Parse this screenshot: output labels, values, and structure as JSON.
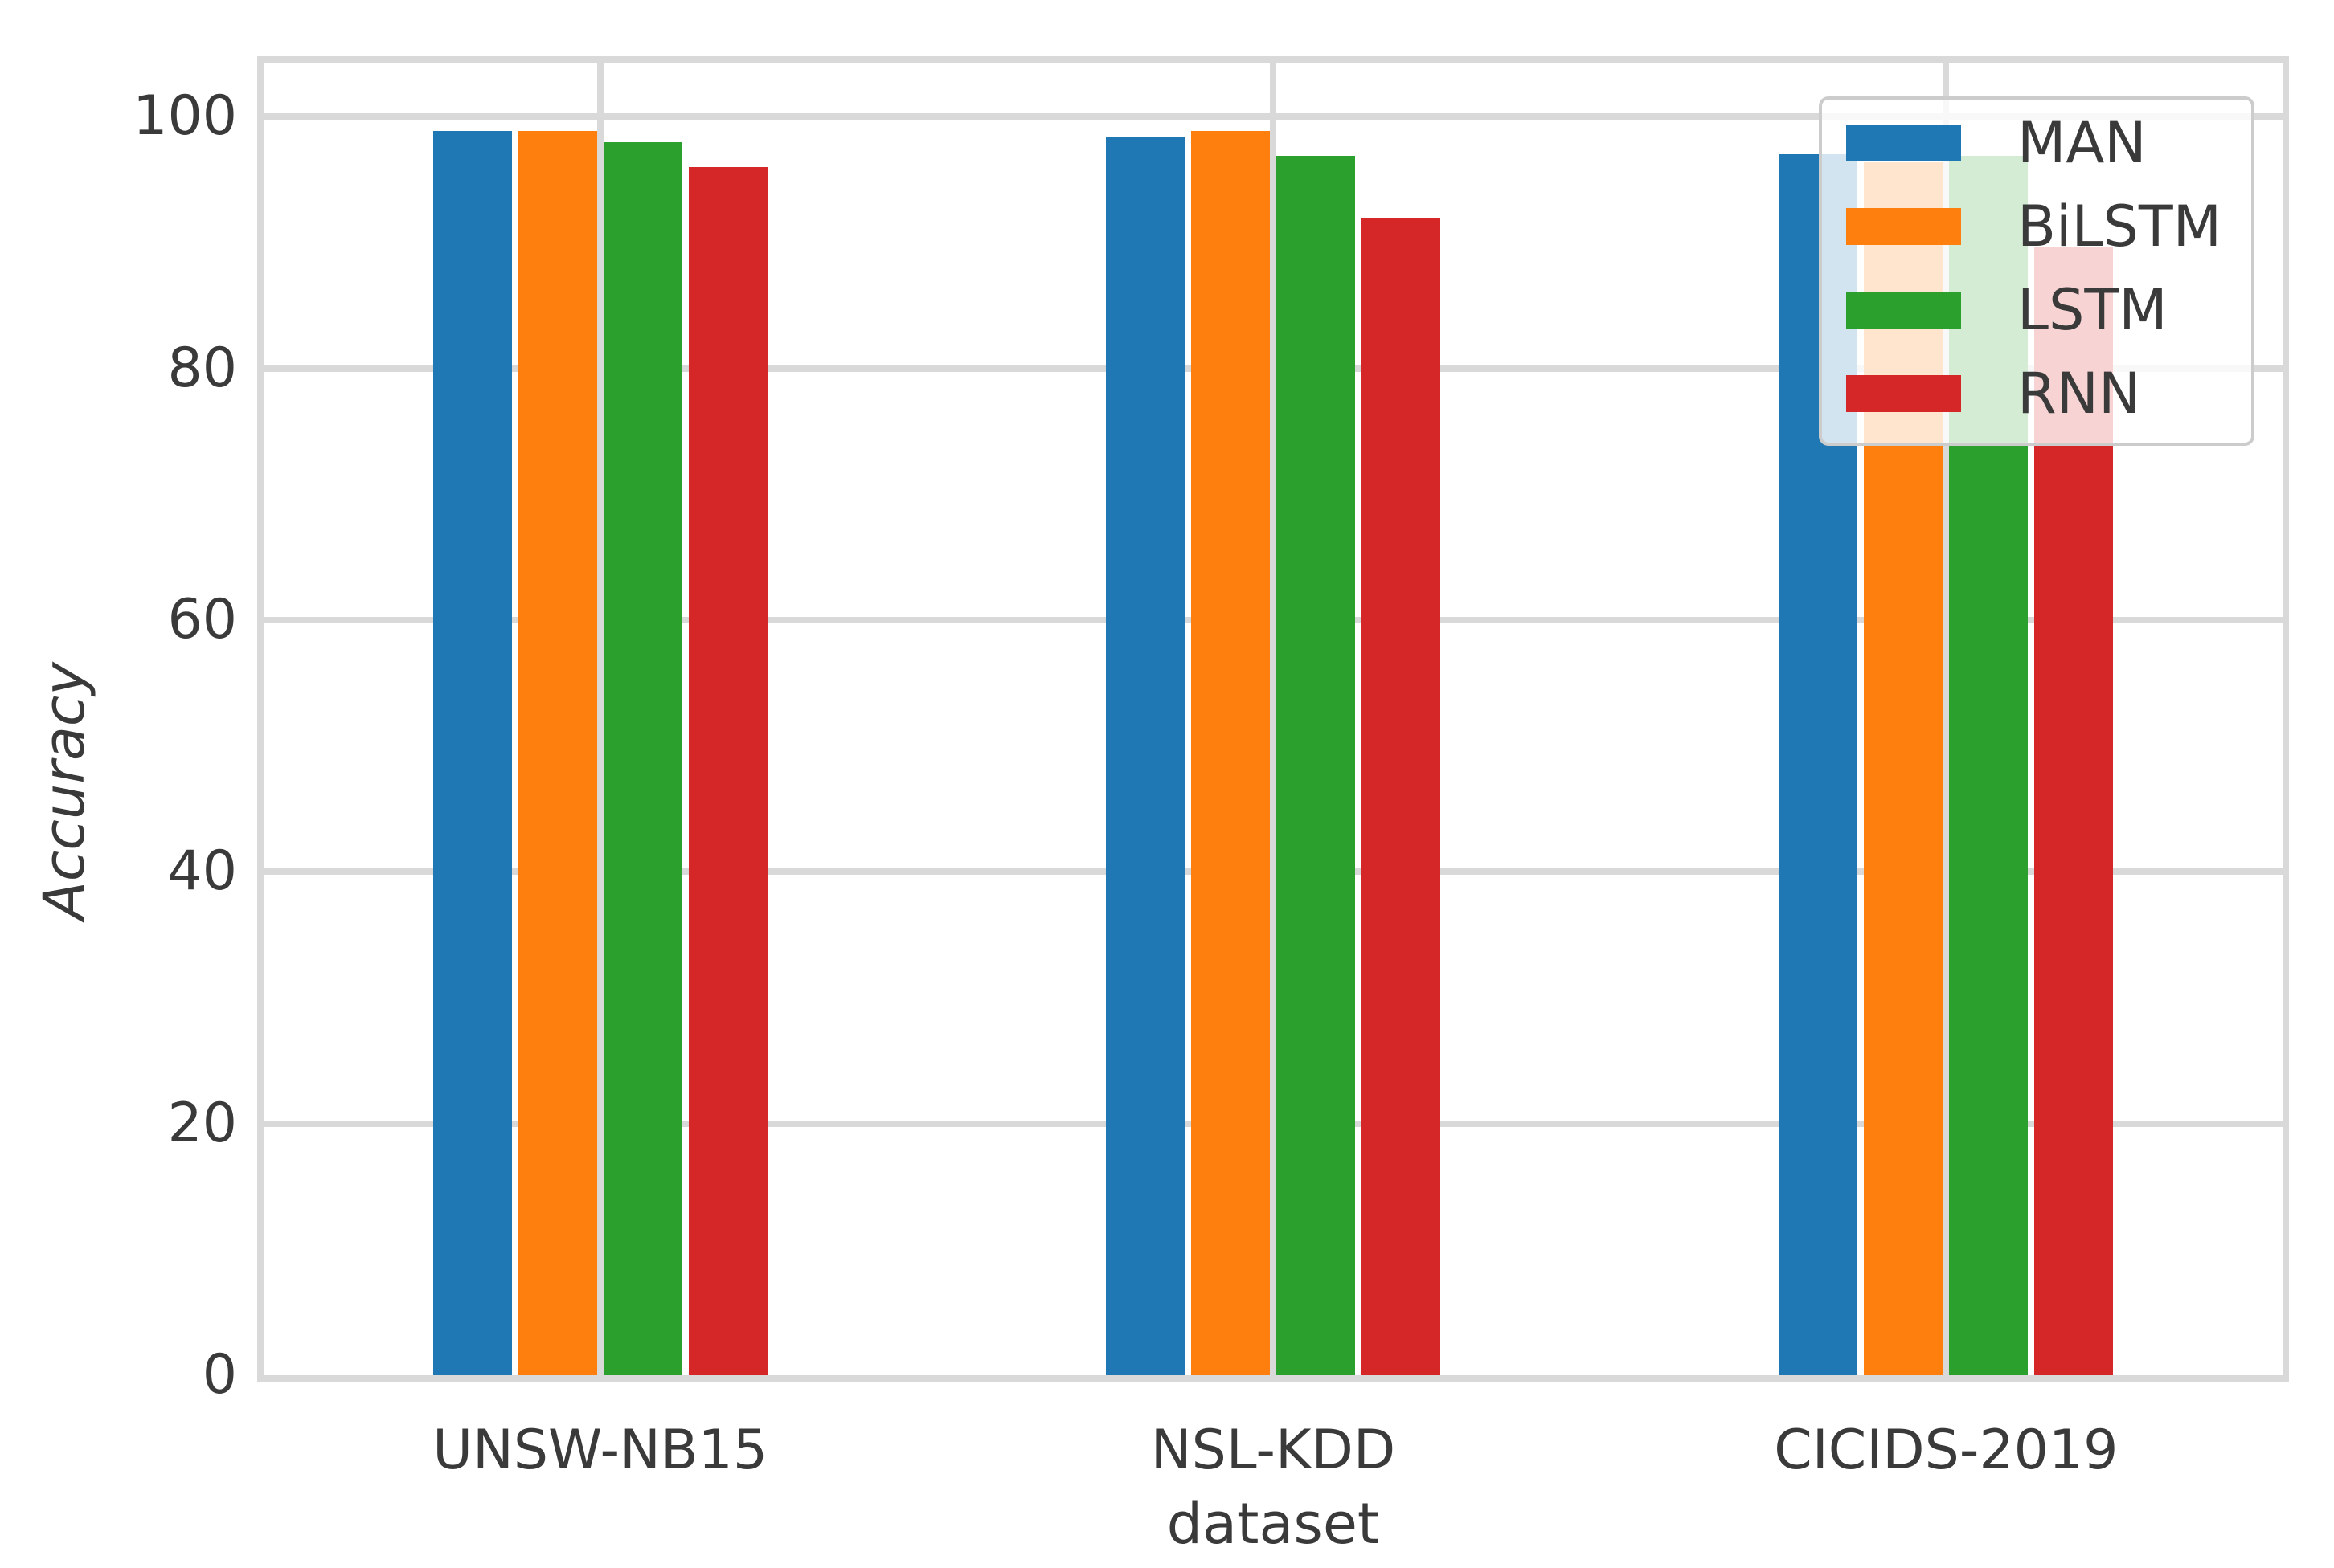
{
  "chart_data": {
    "type": "bar",
    "title": "",
    "xlabel": "dataset",
    "ylabel": "Accuracy",
    "categories": [
      "UNSW-NB15",
      "NSL-KDD",
      "CICIDS-2019"
    ],
    "series": [
      {
        "name": "MAN",
        "color": "#1f77b4",
        "values": [
          98.9,
          98.4,
          97.0
        ]
      },
      {
        "name": "BiLSTM",
        "color": "#ff7f0e",
        "values": [
          98.9,
          98.9,
          96.4
        ]
      },
      {
        "name": "LSTM",
        "color": "#2ca02c",
        "values": [
          98.0,
          96.9,
          96.9
        ]
      },
      {
        "name": "RNN",
        "color": "#d62728",
        "values": [
          96.0,
          92.0,
          89.7
        ]
      }
    ],
    "yticks": [
      0,
      20,
      40,
      60,
      80,
      100
    ],
    "ylim": [
      0,
      104.3
    ],
    "grid": true,
    "legend_position": "upper right"
  },
  "style": {
    "grid_color": "#d9d9d9",
    "text_color": "#3a3a3a",
    "background": "#ffffff",
    "legend_border_color": "#cccccc"
  }
}
